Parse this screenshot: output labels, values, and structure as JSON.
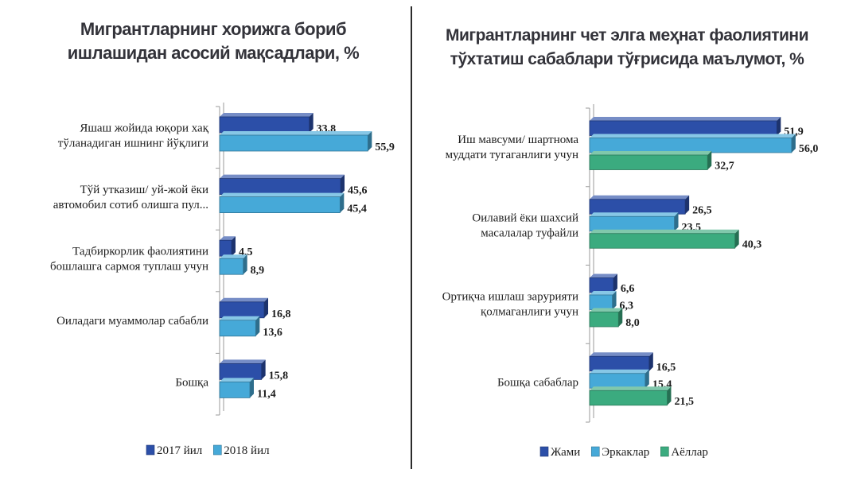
{
  "chart_data": [
    {
      "type": "bar",
      "orientation": "horizontal",
      "title_lines": [
        "Мигрантларнинг хорижга бориб",
        "ишлашидан асосий мақсадлари, %"
      ],
      "categories": [
        [
          "Яшаш жойида юқори хақ",
          "тўланадиган ишнинг йўқлиги"
        ],
        [
          "Тўй утказиш/ уй-жой ёки",
          "автомобил сотиб олишга пул..."
        ],
        [
          "Тадбиркорлик фаолиятини",
          "бошлашга сармоя туплаш учун"
        ],
        [
          "Оиладаги муаммолар сабабли"
        ],
        [
          "Бошқа"
        ]
      ],
      "series": [
        {
          "name": "2017 йил",
          "values": [
            33.8,
            45.6,
            4.5,
            16.8,
            15.8
          ],
          "labels": [
            "33,8",
            "45,6",
            "4,5",
            "16,8",
            "15,8"
          ],
          "color": "#2c4fa8"
        },
        {
          "name": "2018 йил",
          "values": [
            55.9,
            45.4,
            8.9,
            13.6,
            11.4
          ],
          "labels": [
            "55,9",
            "45,4",
            "8,9",
            "13,6",
            "11,4"
          ],
          "color": "#46a9d8"
        }
      ],
      "xlim": [
        0,
        60
      ],
      "legend_position": "bottom",
      "grid": false
    },
    {
      "type": "bar",
      "orientation": "horizontal",
      "title_lines": [
        "Мигрантларнинг чет элга меҳнат фаолиятини",
        "тўхтатиш сабаблари тўғрисида маълумот, %"
      ],
      "categories": [
        [
          "Иш мавсуми/ шартнома",
          "муддати тугаганлиги учун"
        ],
        [
          "Оилавий ёки шахсий",
          "масалалар туфайли"
        ],
        [
          "Ортиқча ишлаш зарурияти",
          "қолмаганлиги учун"
        ],
        [
          "Бошқа сабаблар"
        ]
      ],
      "series": [
        {
          "name": "Жами",
          "values": [
            51.9,
            26.5,
            6.6,
            16.5
          ],
          "labels": [
            "51,9",
            "26,5",
            "6,6",
            "16,5"
          ],
          "color": "#2c4fa8"
        },
        {
          "name": "Эркаклар",
          "values": [
            56.0,
            23.5,
            6.3,
            15.4
          ],
          "labels": [
            "56,0",
            "23,5",
            "6,3",
            "15,4"
          ],
          "color": "#46a9d8"
        },
        {
          "name": "Аёллар",
          "values": [
            32.7,
            40.3,
            8.0,
            21.5
          ],
          "labels": [
            "32,7",
            "40,3",
            "8,0",
            "21,5"
          ],
          "color": "#3bab7f"
        }
      ],
      "xlim": [
        0,
        60
      ],
      "legend_position": "bottom",
      "grid": false
    }
  ]
}
